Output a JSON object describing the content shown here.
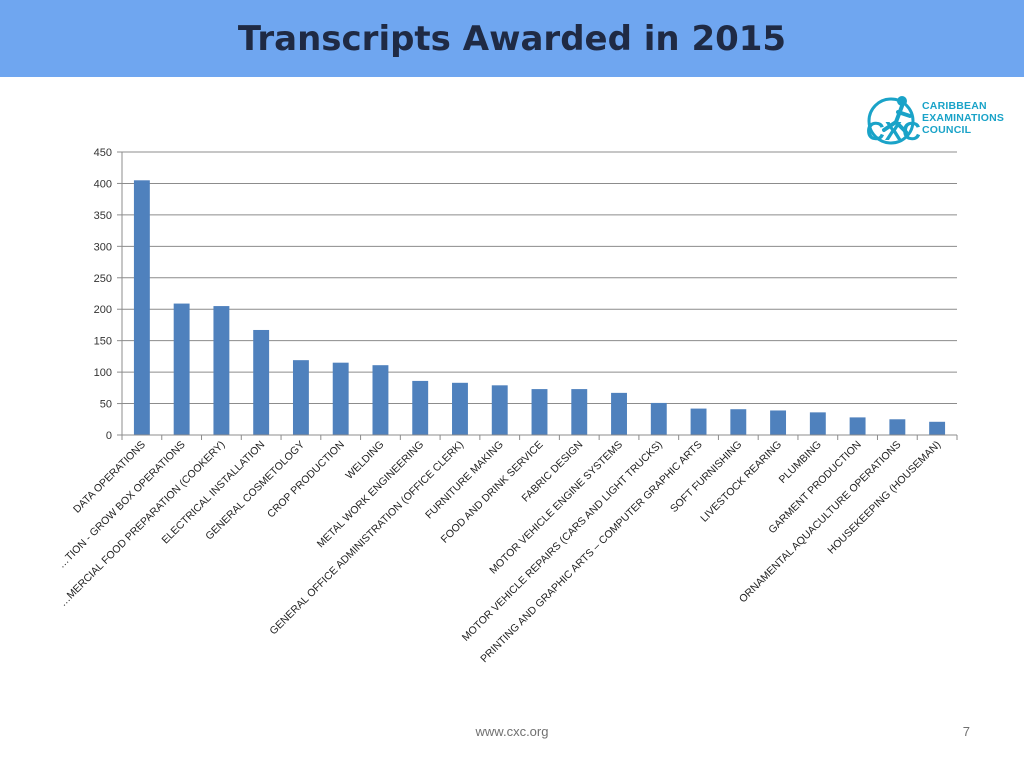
{
  "slide": {
    "title": "Transcripts Awarded in 2015",
    "footer_url": "www.cxc.org",
    "page_number": "7"
  },
  "logo": {
    "initials": "CXC",
    "line1": "CARIBBEAN",
    "line2": "EXAMINATIONS",
    "line3": "COUNCIL",
    "color": "#1aa3c8"
  },
  "colors": {
    "title_bar": "#6fa6f0",
    "bar": "#4f81bd",
    "grid": "#8c8c8c"
  },
  "chart_data": {
    "type": "bar",
    "title": "",
    "xlabel": "",
    "ylabel": "",
    "ylim": [
      0,
      450
    ],
    "yticks": [
      0,
      50,
      100,
      150,
      200,
      250,
      300,
      350,
      400,
      450
    ],
    "grid": true,
    "legend": "none",
    "categories": [
      "DATA OPERATIONS",
      "…TION - GROW BOX OPERATIONS",
      "…MERCIAL FOOD PREPARATION (COOKERY)",
      "ELECTRICAL INSTALLATION",
      "GENERAL COSMETOLOGY",
      "CROP PRODUCTION",
      "WELDING",
      "METAL WORK ENGINEERING",
      "GENERAL OFFICE ADMINISTRATION (OFFICE CLERK)",
      "FURNITURE MAKING",
      "FOOD AND DRINK SERVICE",
      "FABRIC DESIGN",
      "MOTOR VEHICLE ENGINE SYSTEMS",
      "MOTOR VEHICLE REPAIRS (CARS AND LIGHT TRUCKS)",
      "PRINTING AND GRAPHIC ARTS – COMPUTER GRAPHIC ARTS",
      "SOFT FURNISHING",
      "LIVESTOCK REARING",
      "PLUMBING",
      "GARMENT PRODUCTION",
      "ORNAMENTAL AQUACULTURE OPERATIONS",
      "HOUSEKEEPING (HOUSEMAN)"
    ],
    "values": [
      405,
      209,
      205,
      167,
      119,
      115,
      111,
      86,
      83,
      79,
      73,
      73,
      67,
      51,
      42,
      41,
      39,
      36,
      28,
      25,
      21
    ]
  }
}
